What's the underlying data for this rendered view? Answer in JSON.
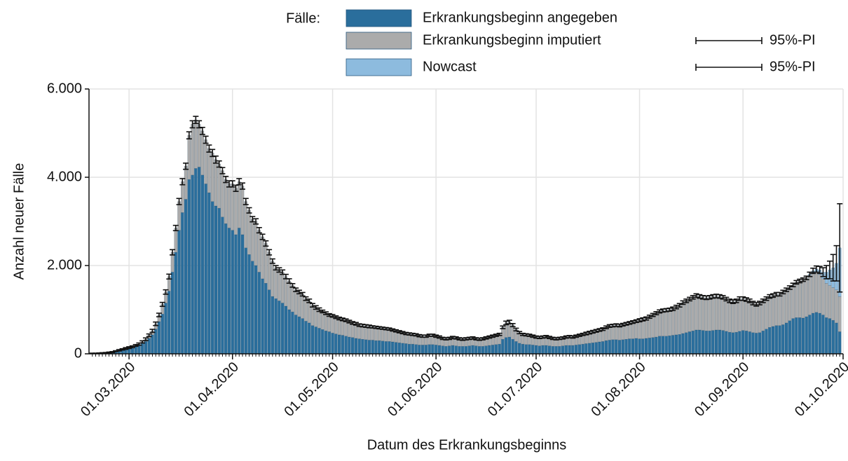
{
  "chart_data": {
    "type": "stacked_bar",
    "x_label": "Datum des Erkrankungsbeginns",
    "y_label": "Anzahl neuer Fälle",
    "legend_title": "Fälle:",
    "x": [
      "19.02.2020",
      "20.02.2020",
      "21.02.2020",
      "22.02.2020",
      "23.02.2020",
      "24.02.2020",
      "25.02.2020",
      "26.02.2020",
      "27.02.2020",
      "28.02.2020",
      "29.02.2020",
      "01.03.2020",
      "02.03.2020",
      "03.03.2020",
      "04.03.2020",
      "05.03.2020",
      "06.03.2020",
      "07.03.2020",
      "08.03.2020",
      "09.03.2020",
      "10.03.2020",
      "11.03.2020",
      "12.03.2020",
      "13.03.2020",
      "14.03.2020",
      "15.03.2020",
      "16.03.2020",
      "17.03.2020",
      "18.03.2020",
      "19.03.2020",
      "20.03.2020",
      "21.03.2020",
      "22.03.2020",
      "23.03.2020",
      "24.03.2020",
      "25.03.2020",
      "26.03.2020",
      "27.03.2020",
      "28.03.2020",
      "29.03.2020",
      "30.03.2020",
      "31.03.2020",
      "01.04.2020",
      "02.04.2020",
      "03.04.2020",
      "04.04.2020",
      "05.04.2020",
      "06.04.2020",
      "07.04.2020",
      "08.04.2020",
      "09.04.2020",
      "10.04.2020",
      "11.04.2020",
      "12.04.2020",
      "13.04.2020",
      "14.04.2020",
      "15.04.2020",
      "16.04.2020",
      "17.04.2020",
      "18.04.2020",
      "19.04.2020",
      "20.04.2020",
      "21.04.2020",
      "22.04.2020",
      "23.04.2020",
      "24.04.2020",
      "25.04.2020",
      "26.04.2020",
      "27.04.2020",
      "28.04.2020",
      "29.04.2020",
      "30.04.2020",
      "01.05.2020",
      "02.05.2020",
      "03.05.2020",
      "04.05.2020",
      "05.05.2020",
      "06.05.2020",
      "07.05.2020",
      "08.05.2020",
      "09.05.2020",
      "10.05.2020",
      "11.05.2020",
      "12.05.2020",
      "13.05.2020",
      "14.05.2020",
      "15.05.2020",
      "16.05.2020",
      "17.05.2020",
      "18.05.2020",
      "19.05.2020",
      "20.05.2020",
      "21.05.2020",
      "22.05.2020",
      "23.05.2020",
      "24.05.2020",
      "25.05.2020",
      "26.05.2020",
      "27.05.2020",
      "28.05.2020",
      "29.05.2020",
      "30.05.2020",
      "31.05.2020",
      "01.06.2020",
      "02.06.2020",
      "03.06.2020",
      "04.06.2020",
      "05.06.2020",
      "06.06.2020",
      "07.06.2020",
      "08.06.2020",
      "09.06.2020",
      "10.06.2020",
      "11.06.2020",
      "12.06.2020",
      "13.06.2020",
      "14.06.2020",
      "15.06.2020",
      "16.06.2020",
      "17.06.2020",
      "18.06.2020",
      "19.06.2020",
      "20.06.2020",
      "21.06.2020",
      "22.06.2020",
      "23.06.2020",
      "24.06.2020",
      "25.06.2020",
      "26.06.2020",
      "27.06.2020",
      "28.06.2020",
      "29.06.2020",
      "30.06.2020",
      "01.07.2020",
      "02.07.2020",
      "03.07.2020",
      "04.07.2020",
      "05.07.2020",
      "06.07.2020",
      "07.07.2020",
      "08.07.2020",
      "09.07.2020",
      "10.07.2020",
      "11.07.2020",
      "12.07.2020",
      "13.07.2020",
      "14.07.2020",
      "15.07.2020",
      "16.07.2020",
      "17.07.2020",
      "18.07.2020",
      "19.07.2020",
      "20.07.2020",
      "21.07.2020",
      "22.07.2020",
      "23.07.2020",
      "24.07.2020",
      "25.07.2020",
      "26.07.2020",
      "27.07.2020",
      "28.07.2020",
      "29.07.2020",
      "30.07.2020",
      "31.07.2020",
      "01.08.2020",
      "02.08.2020",
      "03.08.2020",
      "04.08.2020",
      "05.08.2020",
      "06.08.2020",
      "07.08.2020",
      "08.08.2020",
      "09.08.2020",
      "10.08.2020",
      "11.08.2020",
      "12.08.2020",
      "13.08.2020",
      "14.08.2020",
      "15.08.2020",
      "16.08.2020",
      "17.08.2020",
      "18.08.2020",
      "19.08.2020",
      "20.08.2020",
      "21.08.2020",
      "22.08.2020",
      "23.08.2020",
      "24.08.2020",
      "25.08.2020",
      "26.08.2020",
      "27.08.2020",
      "28.08.2020",
      "29.08.2020",
      "30.08.2020",
      "31.08.2020",
      "01.09.2020",
      "02.09.2020",
      "03.09.2020",
      "04.09.2020",
      "05.09.2020",
      "06.09.2020",
      "07.09.2020",
      "08.09.2020",
      "09.09.2020",
      "10.09.2020",
      "11.09.2020",
      "12.09.2020",
      "13.09.2020",
      "14.09.2020",
      "15.09.2020",
      "16.09.2020",
      "17.09.2020",
      "18.09.2020",
      "19.09.2020",
      "20.09.2020",
      "21.09.2020",
      "22.09.2020",
      "23.09.2020",
      "24.09.2020",
      "25.09.2020",
      "26.09.2020",
      "27.09.2020",
      "28.09.2020",
      "29.09.2020",
      "30.09.2020"
    ],
    "series": [
      {
        "name": "Erkrankungsbeginn angegeben",
        "color": "#2a6e9c",
        "values": [
          8,
          8,
          12,
          15,
          20,
          25,
          33,
          50,
          65,
          80,
          100,
          120,
          140,
          160,
          190,
          230,
          280,
          350,
          430,
          560,
          730,
          900,
          1150,
          1420,
          1850,
          2300,
          2800,
          3200,
          3500,
          3950,
          4050,
          4200,
          4230,
          4050,
          3850,
          3650,
          3450,
          3350,
          3300,
          3100,
          2950,
          2850,
          2800,
          2700,
          2850,
          2700,
          2400,
          2250,
          2100,
          2000,
          1850,
          1700,
          1600,
          1450,
          1300,
          1250,
          1200,
          1150,
          1080,
          1000,
          950,
          880,
          840,
          800,
          740,
          700,
          640,
          610,
          580,
          550,
          520,
          500,
          470,
          450,
          430,
          420,
          400,
          380,
          370,
          350,
          340,
          330,
          320,
          310,
          310,
          300,
          300,
          290,
          280,
          280,
          270,
          260,
          250,
          240,
          230,
          220,
          220,
          210,
          200,
          200,
          200,
          210,
          210,
          200,
          190,
          180,
          170,
          180,
          190,
          180,
          170,
          170,
          170,
          180,
          190,
          180,
          170,
          170,
          180,
          190,
          200,
          210,
          220,
          330,
          370,
          380,
          330,
          280,
          240,
          220,
          210,
          210,
          200,
          190,
          180,
          190,
          190,
          180,
          170,
          170,
          170,
          180,
          190,
          190,
          190,
          200,
          210,
          220,
          230,
          240,
          250,
          260,
          270,
          280,
          300,
          310,
          320,
          320,
          310,
          320,
          330,
          340,
          340,
          350,
          340,
          340,
          350,
          360,
          370,
          380,
          400,
          400,
          400,
          410,
          420,
          430,
          440,
          460,
          480,
          500,
          520,
          540,
          540,
          530,
          520,
          520,
          530,
          540,
          540,
          530,
          510,
          490,
          480,
          490,
          510,
          530,
          520,
          500,
          480,
          470,
          480,
          520,
          560,
          600,
          620,
          640,
          640,
          660,
          700,
          750,
          800,
          820,
          820,
          810,
          840,
          880,
          920,
          940,
          920,
          880,
          820,
          800,
          760,
          700,
          500
        ]
      },
      {
        "name": "Erkrankungsbeginn imputiert",
        "color": "#ababab",
        "interval_label": "95%-PI",
        "values": [
          2,
          2,
          3,
          5,
          5,
          5,
          7,
          10,
          15,
          20,
          20,
          20,
          20,
          30,
          30,
          40,
          50,
          70,
          90,
          120,
          150,
          220,
          250,
          330,
          450,
          550,
          650,
          700,
          750,
          1000,
          1150,
          1100,
          970,
          1000,
          1000,
          1000,
          1100,
          1050,
          1000,
          1050,
          1000,
          1000,
          1050,
          1050,
          1050,
          1100,
          1050,
          1000,
          950,
          1000,
          950,
          950,
          900,
          850,
          800,
          700,
          700,
          700,
          670,
          650,
          600,
          570,
          560,
          550,
          510,
          500,
          460,
          440,
          420,
          410,
          400,
          380,
          390,
          380,
          370,
          360,
          360,
          350,
          330,
          330,
          310,
          310,
          310,
          310,
          300,
          300,
          290,
          290,
          290,
          280,
          270,
          260,
          250,
          240,
          230,
          230,
          220,
          220,
          210,
          200,
          200,
          210,
          210,
          200,
          190,
          170,
          170,
          170,
          180,
          180,
          170,
          160,
          170,
          170,
          170,
          160,
          160,
          170,
          180,
          190,
          200,
          210,
          220,
          270,
          330,
          340,
          320,
          270,
          240,
          220,
          220,
          210,
          200,
          190,
          190,
          190,
          200,
          190,
          180,
          170,
          180,
          180,
          190,
          200,
          190,
          200,
          210,
          220,
          230,
          240,
          250,
          260,
          270,
          280,
          300,
          320,
          320,
          330,
          330,
          340,
          350,
          360,
          380,
          390,
          420,
          440,
          450,
          480,
          510,
          540,
          560,
          580,
          590,
          590,
          600,
          630,
          660,
          700,
          720,
          740,
          760,
          780,
          760,
          750,
          750,
          760,
          770,
          770,
          760,
          750,
          730,
          710,
          700,
          710,
          740,
          720,
          710,
          700,
          670,
          650,
          670,
          680,
          690,
          700,
          700,
          710,
          710,
          740,
          750,
          750,
          760,
          800,
          830,
          870,
          880,
          900,
          910,
          910,
          880,
          820,
          780,
          750,
          740,
          750,
          800
        ]
      },
      {
        "name": "Nowcast",
        "color": "#8dbbde",
        "interval_label": "95%-PI",
        "x": [
          "21.09.2020",
          "22.09.2020",
          "23.09.2020",
          "24.09.2020",
          "25.09.2020",
          "26.09.2020",
          "27.09.2020",
          "28.09.2020",
          "29.09.2020",
          "30.09.2020"
        ],
        "values": [
          20,
          50,
          70,
          100,
          150,
          250,
          350,
          450,
          600,
          1100
        ]
      }
    ],
    "errors": [
      5,
      5,
      5,
      5,
      5,
      10,
      10,
      10,
      15,
      15,
      20,
      20,
      20,
      20,
      25,
      25,
      30,
      30,
      35,
      40,
      40,
      45,
      50,
      55,
      60,
      60,
      70,
      70,
      70,
      80,
      80,
      80,
      80,
      80,
      80,
      80,
      80,
      80,
      70,
      70,
      70,
      70,
      70,
      70,
      70,
      70,
      70,
      60,
      60,
      60,
      60,
      60,
      60,
      60,
      50,
      50,
      50,
      50,
      50,
      50,
      40,
      40,
      40,
      40,
      40,
      40,
      40,
      40,
      40,
      30,
      30,
      30,
      30,
      30,
      30,
      30,
      30,
      30,
      30,
      30,
      30,
      30,
      30,
      30,
      25,
      25,
      25,
      25,
      25,
      25,
      25,
      25,
      25,
      25,
      25,
      25,
      25,
      25,
      25,
      25,
      25,
      25,
      25,
      25,
      25,
      25,
      25,
      25,
      25,
      25,
      25,
      25,
      25,
      25,
      25,
      25,
      25,
      25,
      25,
      25,
      25,
      25,
      25,
      30,
      40,
      40,
      35,
      30,
      25,
      25,
      25,
      25,
      25,
      25,
      25,
      25,
      25,
      25,
      25,
      25,
      25,
      25,
      25,
      25,
      25,
      25,
      25,
      25,
      30,
      30,
      30,
      30,
      30,
      30,
      30,
      30,
      30,
      30,
      30,
      30,
      30,
      30,
      30,
      30,
      35,
      35,
      35,
      35,
      35,
      35,
      35,
      35,
      35,
      35,
      40,
      40,
      40,
      40,
      40,
      40,
      40,
      40,
      40,
      40,
      40,
      40,
      40,
      40,
      40,
      40,
      40,
      40,
      40,
      40,
      40,
      40,
      40,
      40,
      40,
      40,
      40,
      40,
      40,
      40,
      40,
      40,
      40,
      40,
      40,
      40,
      40,
      40,
      40,
      40,
      40,
      50,
      60,
      70,
      80,
      100,
      150,
      200,
      300,
      400,
      1000
    ],
    "xlim": [
      "18.02.2020",
      "01.10.2020"
    ],
    "xticks": [
      "01.03.2020",
      "01.04.2020",
      "01.05.2020",
      "01.06.2020",
      "01.07.2020",
      "01.08.2020",
      "01.09.2020",
      "01.10.2020"
    ],
    "ylim": [
      0,
      6000
    ],
    "yticks": [
      0,
      {
        "value": 2000,
        "label": "2.000"
      },
      {
        "value": 4000,
        "label": "4.000"
      },
      {
        "value": 6000,
        "label": "6.000"
      }
    ],
    "grid": true
  }
}
